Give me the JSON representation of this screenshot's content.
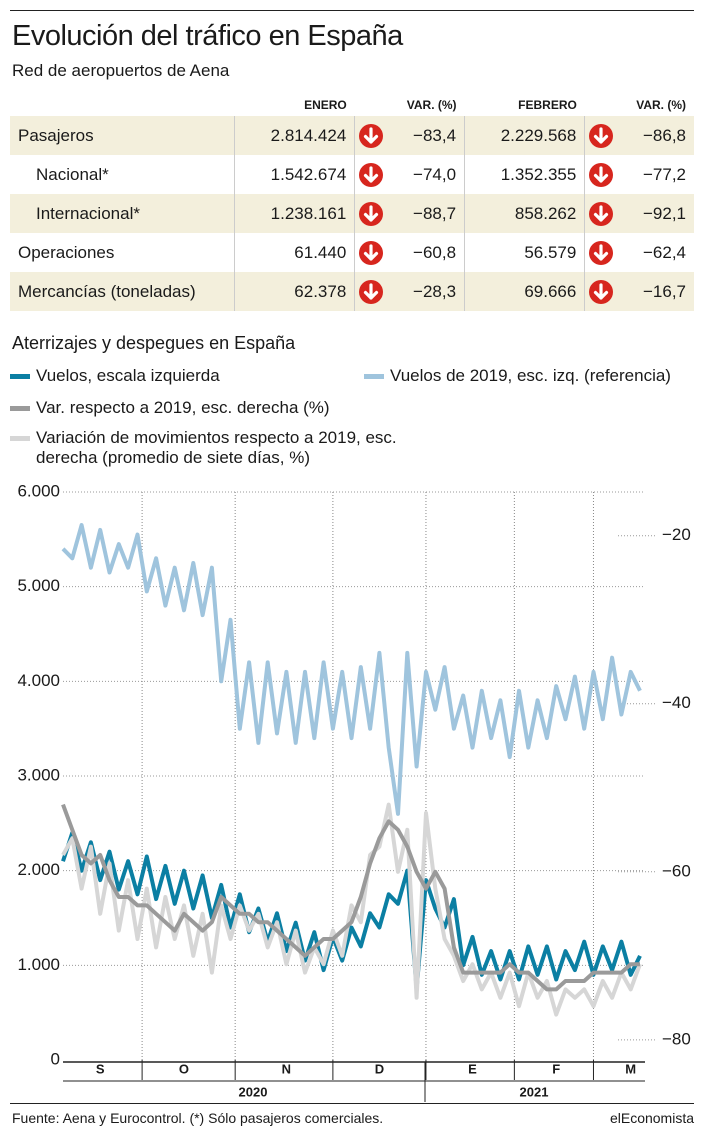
{
  "header": {
    "title": "Evolución del tráfico en España",
    "subtitle": "Red de aeropuertos de Aena"
  },
  "table": {
    "columns": [
      "ENERO",
      "VAR. (%)",
      "FEBRERO",
      "VAR. (%)"
    ],
    "rows": [
      [
        "Pasajeros",
        "2.814.424",
        "−83,4",
        "2.229.568",
        "−86,8"
      ],
      [
        "Nacional*",
        "1.542.674",
        "−74,0",
        "1.352.355",
        "−77,2"
      ],
      [
        "Internacional*",
        "1.238.161",
        "−88,7",
        "858.262",
        "−92,1"
      ],
      [
        "Operaciones",
        "61.440",
        "−60,8",
        "56.579",
        "−62,4"
      ],
      [
        "Mercancías (toneladas)",
        "62.378",
        "−28,3",
        "69.666",
        "−16,7"
      ]
    ]
  },
  "chart_data": {
    "type": "line",
    "title": "Aterrizajes y despegues en España",
    "categories": [
      null,
      null,
      null,
      null,
      "S",
      null,
      null,
      null,
      null,
      null,
      null,
      null,
      null,
      "O",
      null,
      null,
      null,
      null,
      null,
      null,
      null,
      null,
      null,
      null,
      "N",
      null,
      null,
      null,
      null,
      null,
      null,
      null,
      null,
      null,
      "D",
      null,
      null,
      null,
      null,
      null,
      null,
      null,
      null,
      null,
      "E",
      null,
      null,
      null,
      null,
      null,
      null,
      null,
      null,
      "F",
      null,
      null,
      null,
      null,
      null,
      null,
      null,
      "M",
      null
    ],
    "year_labels": [
      "2020",
      "2021"
    ],
    "series": [
      {
        "name": "Vuelos de 2019, esc. izq. (referencia)",
        "color": "#9fc4dd",
        "axis": "y",
        "values": [
          5400,
          5300,
          5650,
          5200,
          5600,
          5150,
          5450,
          5200,
          5550,
          4950,
          5300,
          4800,
          5200,
          4750,
          5250,
          4700,
          5200,
          4000,
          4650,
          3500,
          4200,
          3350,
          4200,
          3450,
          4100,
          3350,
          4100,
          3400,
          4200,
          3500,
          4100,
          3400,
          4150,
          3500,
          4300,
          3300,
          2600,
          4300,
          3100,
          4100,
          3700,
          4150,
          3500,
          3850,
          3300,
          3900,
          3400,
          3800,
          3200,
          3900,
          3300,
          3800,
          3400,
          3950,
          3600,
          4050,
          3500,
          4100,
          3600,
          4250,
          3650,
          4100,
          3900
        ]
      },
      {
        "name": "Vuelos, escala izquierda",
        "color": "#0b7fa3",
        "axis": "y",
        "values": [
          2100,
          2400,
          2000,
          2300,
          1900,
          2200,
          1800,
          2100,
          1750,
          2150,
          1700,
          2050,
          1650,
          2000,
          1600,
          1950,
          1500,
          1850,
          1400,
          1750,
          1350,
          1600,
          1250,
          1550,
          1150,
          1450,
          1050,
          1350,
          950,
          1300,
          1050,
          1400,
          1200,
          1550,
          1400,
          1750,
          1650,
          2000,
          750,
          1900,
          1600,
          1400,
          1700,
          1000,
          1300,
          900,
          1150,
          850,
          1150,
          850,
          1200,
          900,
          1200,
          850,
          1150,
          950,
          1250,
          900,
          1200,
          950,
          1250,
          900,
          1100
        ]
      },
      {
        "name": "Variación de movimientos respecto a 2019, esc. derecha (promedio de siete días, %)",
        "color": "#d6d6d6",
        "axis": "y2",
        "values": [
          -58,
          -56,
          -62,
          -57,
          -65,
          -59,
          -67,
          -61,
          -68,
          -62,
          -69,
          -63,
          -68,
          -64,
          -70,
          -65,
          -72,
          -64,
          -68,
          -64,
          -67,
          -65,
          -69,
          -66,
          -71,
          -67,
          -72,
          -69,
          -71,
          -67,
          -70,
          -64,
          -66,
          -58,
          -57,
          -52,
          -60,
          -55,
          -75,
          -53,
          -62,
          -68,
          -70,
          -73,
          -71,
          -74,
          -72,
          -75,
          -72,
          -76,
          -72,
          -75,
          -73,
          -77,
          -74,
          -75,
          -74,
          -76,
          -73,
          -75,
          -72,
          -74,
          -71
        ]
      },
      {
        "name": "Var. respecto a 2019, esc. derecha (%)",
        "color": "#9a9a9a",
        "axis": "y2",
        "values": [
          -52,
          -55,
          -58,
          -59,
          -58,
          -61,
          -63,
          -63,
          -64,
          -64,
          -65,
          -66,
          -67,
          -65,
          -66,
          -67,
          -66,
          -63,
          -64,
          -65,
          -65,
          -66,
          -66,
          -67,
          -68,
          -69,
          -70,
          -69,
          -68,
          -68,
          -67,
          -66,
          -63,
          -59,
          -56,
          -54,
          -55,
          -57,
          -60,
          -62,
          -60,
          -62,
          -69,
          -72,
          -72,
          -72,
          -72,
          -72,
          -71,
          -72,
          -72,
          -73,
          -74,
          -74,
          -73,
          -73,
          -73,
          -72,
          -72,
          -72,
          -72,
          -71,
          -71
        ]
      }
    ],
    "ylim": [
      0,
      6000
    ],
    "yticks": [
      0,
      {
        "value": 1000,
        "label": "1.000"
      },
      {
        "value": 2000,
        "label": "2.000"
      },
      {
        "value": 3000,
        "label": "3.000"
      },
      {
        "value": 4000,
        "label": "4.000"
      },
      {
        "value": 5000,
        "label": "5.000"
      },
      {
        "value": 6000,
        "label": "6.000"
      }
    ],
    "y2lim": [
      -82.4,
      -14.8
    ],
    "y2ticks": [
      {
        "value": -20,
        "label": "−20"
      },
      {
        "value": -40,
        "label": "−40"
      },
      {
        "value": -60,
        "label": "−60"
      },
      {
        "value": -80,
        "label": "−80"
      }
    ],
    "grid": true,
    "legend_order": [
      1,
      0,
      3,
      2
    ]
  },
  "footer": {
    "source": "Fuente: Aena y Eurocontrol. (*) Sólo pasajeros comerciales.",
    "brand": "elEconomista"
  }
}
